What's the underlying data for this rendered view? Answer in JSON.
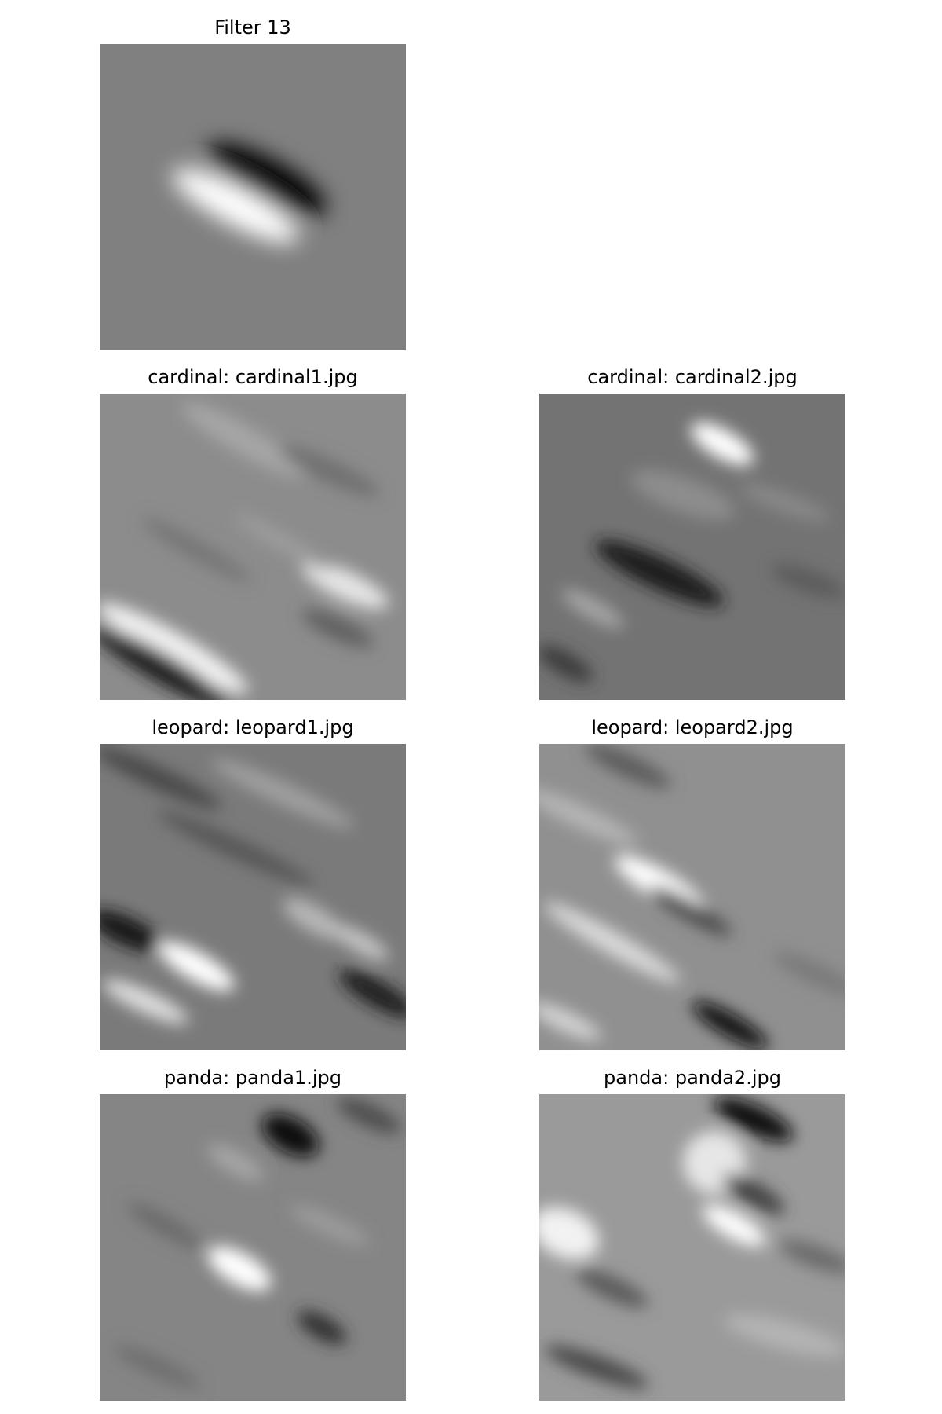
{
  "figure": {
    "panels": [
      {
        "title": "Filter 13",
        "kind": "filter"
      },
      {
        "title": "cardinal: cardinal1.jpg",
        "kind": "response"
      },
      {
        "title": "cardinal: cardinal2.jpg",
        "kind": "response"
      },
      {
        "title": "leopard: leopard1.jpg",
        "kind": "response"
      },
      {
        "title": "leopard: leopard2.jpg",
        "kind": "response"
      },
      {
        "title": "panda: panda1.jpg",
        "kind": "response"
      },
      {
        "title": "panda: panda2.jpg",
        "kind": "response"
      }
    ]
  },
  "colors": {
    "background": "#ffffff",
    "text": "#000000",
    "colormap": "grayscale"
  }
}
